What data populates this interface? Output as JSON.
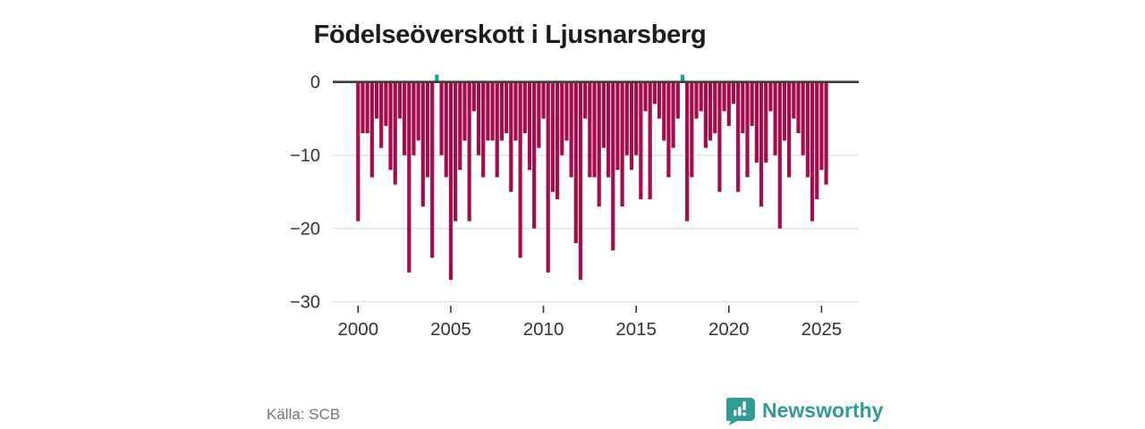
{
  "title": "Födelseöverskott i Ljusnarsberg",
  "footer": {
    "source": "Källa: SCB",
    "brand": "Newsworthy"
  },
  "colors": {
    "bar_negative": "#A30D4E",
    "bar_positive": "#18A19E",
    "zero_line": "#3B3B3B",
    "grid": "#E3E3E3",
    "axis_text": "#333333",
    "tick_mark": "#333333",
    "title_text": "#1B1B1B",
    "source_text": "#737373",
    "brand_teal": "#2E9B94"
  },
  "chart_data": {
    "type": "bar",
    "title": "Födelseöverskott i Ljusnarsberg",
    "xlabel": "",
    "ylabel": "",
    "frequency": "quarterly",
    "start_period": "2000-Q1",
    "end_period": "2025-Q2",
    "grid": "horizontal",
    "legend": "none",
    "xtick_labels": [
      "2000",
      "2005",
      "2010",
      "2015",
      "2020",
      "2025"
    ],
    "ytick_values": [
      0,
      -10,
      -20,
      -30
    ],
    "ytick_labels": [
      "0",
      "−10",
      "−20",
      "−30"
    ],
    "ylim": [
      2,
      -31
    ],
    "values": [
      -19,
      -7,
      -7,
      -13,
      -5,
      -9,
      -6,
      -12,
      -14,
      -5,
      -10,
      -26,
      -10,
      -8,
      -17,
      -13,
      -24,
      1,
      -10,
      -13,
      -27,
      -19,
      -12,
      -8,
      -19,
      -4,
      -10,
      -13,
      -8,
      -8,
      -13,
      -8,
      -7,
      -15,
      -8,
      -24,
      -7,
      -12,
      -20,
      -9,
      -5,
      -26,
      -15,
      -16,
      -10,
      -8,
      -13,
      -22,
      -27,
      -5,
      -13,
      -13,
      -17,
      -9,
      -13,
      -23,
      -12,
      -17,
      -10,
      -12,
      -10,
      -16,
      -4,
      -16,
      -3,
      -5,
      -8,
      -13,
      -9,
      -5,
      1,
      -19,
      -13,
      -5,
      -4,
      -9,
      -8,
      -7,
      -15,
      -4,
      -6,
      -3,
      -15,
      -7,
      -13,
      -6,
      -11,
      -17,
      -11,
      -4,
      -10,
      -20,
      -8,
      -13,
      -5,
      -7,
      -10,
      -13,
      -19,
      -16,
      -12,
      -14
    ]
  }
}
